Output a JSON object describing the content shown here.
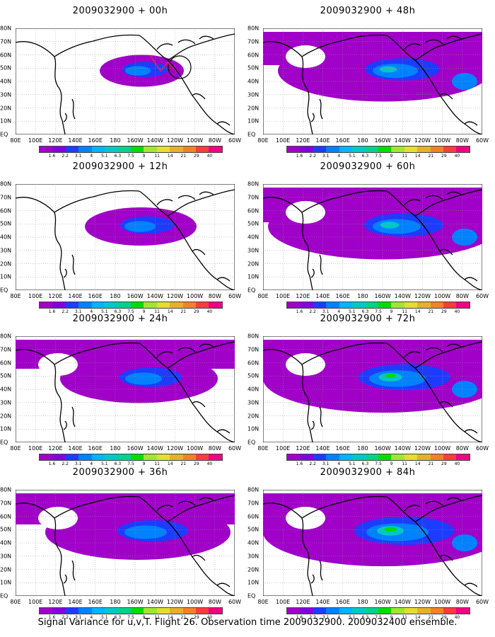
{
  "panels": [
    {
      "title": "2009032900  +  00h"
    },
    {
      "title": "2009032900  +  12h"
    },
    {
      "title": "2009032900  +  24h"
    },
    {
      "title": "2009032900  +  36h"
    },
    {
      "title": "2009032900  +  48h"
    },
    {
      "title": "2009032900  +  60h"
    },
    {
      "title": "2009032900  +  72h"
    },
    {
      "title": "2009032900  +  84h"
    }
  ],
  "lat_labels": [
    "80N",
    "70N",
    "60N",
    "50N",
    "40N",
    "30N",
    "20N",
    "10N",
    "EQ"
  ],
  "lon_labels": [
    "80E",
    "100E",
    "120E",
    "140E",
    "160E",
    "180",
    "160W",
    "140W",
    "120W",
    "100W",
    "80W",
    "60W"
  ],
  "colorbar": {
    "labels": [
      "1.6",
      "2.2",
      "3.1",
      "4",
      "5.1",
      "6.3",
      "7.5",
      "9",
      "11",
      "14",
      "21",
      "29",
      "40"
    ],
    "colors": [
      "#a000c8",
      "#8200dc",
      "#1e3cff",
      "#0082ff",
      "#00b4ff",
      "#00c8c8",
      "#00d28c",
      "#00dc00",
      "#a0e632",
      "#e6dc32",
      "#e6af2d",
      "#f08228",
      "#fa3c3c",
      "#f00082"
    ]
  },
  "caption": "Signal Variance for u,v,T. Flight 26. Observation time 2009032900. 2009032400 ensemble."
}
